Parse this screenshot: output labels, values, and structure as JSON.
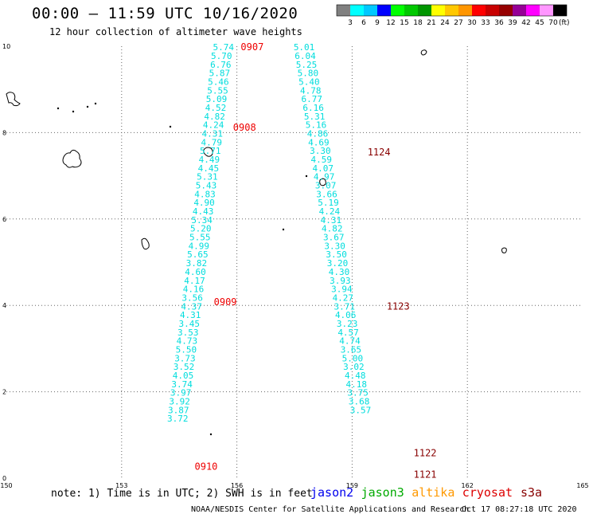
{
  "header": {
    "title": "00:00 — 11:59 UTC 10/16/2020",
    "subtitle": "12 hour collection of altimeter wave heights"
  },
  "footer": {
    "note": "note: 1) Time is in UTC; 2) SWH is in feet",
    "credit": "NOAA/NESDIS Center for Satellite Applications and Research",
    "timestamp": "Oct 17 08:27:18 UTC 2020",
    "satellites": [
      {
        "name": "jason2",
        "color": "#0000ee"
      },
      {
        "name": "jason3",
        "color": "#00aa00"
      },
      {
        "name": "altika",
        "color": "#ff9900"
      },
      {
        "name": "cryosat",
        "color": "#dd0000"
      },
      {
        "name": "s3a",
        "color": "#880000"
      }
    ]
  },
  "colors": {
    "track_values": "#00dddd",
    "track_time_a": "#ee0000",
    "track_time_b": "#880000",
    "grid": "#666666",
    "axis": "#000000"
  },
  "chart_data": {
    "type": "scatter",
    "xlim": [
      150,
      165
    ],
    "ylim": [
      0,
      10
    ],
    "xticks": [
      "150",
      "153",
      "156",
      "159",
      "162",
      "165"
    ],
    "yticks": [
      "0",
      "2",
      "4",
      "6",
      "8",
      "10"
    ],
    "grid": true,
    "legend": {
      "bins": [
        "3",
        "6",
        "9",
        "12",
        "15",
        "18",
        "21",
        "24",
        "27",
        "30",
        "33",
        "36",
        "39",
        "42",
        "45",
        "70"
      ],
      "unit": "(ft)",
      "colors": [
        "#808080",
        "#00ffff",
        "#00c8ff",
        "#0000ff",
        "#00ff00",
        "#00c800",
        "#009600",
        "#ffff00",
        "#ffc800",
        "#ff9600",
        "#ff0000",
        "#c80000",
        "#960000",
        "#960096",
        "#ff00ff",
        "#ff96ff",
        "#000000"
      ]
    },
    "tracks": [
      {
        "times": [
          {
            "label": "0907",
            "x": 156.1,
            "y": 9.98
          },
          {
            "label": "0908",
            "x": 155.9,
            "y": 8.12
          },
          {
            "label": "0909",
            "x": 155.4,
            "y": 4.08
          },
          {
            "label": "0910",
            "x": 154.9,
            "y": 0.27
          }
        ],
        "points": [
          {
            "x": 155.65,
            "y": 9.98,
            "v": "5.74"
          },
          {
            "x": 155.6,
            "y": 9.78,
            "v": "5.70"
          },
          {
            "x": 155.58,
            "y": 9.58,
            "v": "6.76"
          },
          {
            "x": 155.55,
            "y": 9.38,
            "v": "5.87"
          },
          {
            "x": 155.52,
            "y": 9.18,
            "v": "5.46"
          },
          {
            "x": 155.5,
            "y": 8.98,
            "v": "5.55"
          },
          {
            "x": 155.47,
            "y": 8.78,
            "v": "5.09"
          },
          {
            "x": 155.45,
            "y": 8.58,
            "v": "4.52"
          },
          {
            "x": 155.42,
            "y": 8.38,
            "v": "4.82"
          },
          {
            "x": 155.39,
            "y": 8.18,
            "v": "4.24"
          },
          {
            "x": 155.36,
            "y": 7.98,
            "v": "4.31"
          },
          {
            "x": 155.34,
            "y": 7.78,
            "v": "4.79"
          },
          {
            "x": 155.31,
            "y": 7.58,
            "v": "5.71"
          },
          {
            "x": 155.28,
            "y": 7.38,
            "v": "4.49"
          },
          {
            "x": 155.26,
            "y": 7.18,
            "v": "4.45"
          },
          {
            "x": 155.23,
            "y": 6.98,
            "v": "5.31"
          },
          {
            "x": 155.2,
            "y": 6.78,
            "v": "5.43"
          },
          {
            "x": 155.17,
            "y": 6.58,
            "v": "4.83"
          },
          {
            "x": 155.15,
            "y": 6.38,
            "v": "4.90"
          },
          {
            "x": 155.12,
            "y": 6.18,
            "v": "4.43"
          },
          {
            "x": 155.09,
            "y": 5.98,
            "v": "5.34"
          },
          {
            "x": 155.06,
            "y": 5.78,
            "v": "5.20"
          },
          {
            "x": 155.04,
            "y": 5.58,
            "v": "5.55"
          },
          {
            "x": 155.01,
            "y": 5.38,
            "v": "4.99"
          },
          {
            "x": 154.98,
            "y": 5.18,
            "v": "5.65"
          },
          {
            "x": 154.95,
            "y": 4.98,
            "v": "3.82"
          },
          {
            "x": 154.92,
            "y": 4.78,
            "v": "4.60"
          },
          {
            "x": 154.9,
            "y": 4.58,
            "v": "4.17"
          },
          {
            "x": 154.87,
            "y": 4.38,
            "v": "4.16"
          },
          {
            "x": 154.84,
            "y": 4.18,
            "v": "3.56"
          },
          {
            "x": 154.82,
            "y": 3.98,
            "v": "4.37"
          },
          {
            "x": 154.79,
            "y": 3.78,
            "v": "4.31"
          },
          {
            "x": 154.76,
            "y": 3.58,
            "v": "3.45"
          },
          {
            "x": 154.73,
            "y": 3.38,
            "v": "3.53"
          },
          {
            "x": 154.7,
            "y": 3.18,
            "v": "4.73"
          },
          {
            "x": 154.68,
            "y": 2.98,
            "v": "5.50"
          },
          {
            "x": 154.65,
            "y": 2.78,
            "v": "3.73"
          },
          {
            "x": 154.62,
            "y": 2.58,
            "v": "3.52"
          },
          {
            "x": 154.6,
            "y": 2.38,
            "v": "4.05"
          },
          {
            "x": 154.57,
            "y": 2.18,
            "v": "3.74"
          },
          {
            "x": 154.54,
            "y": 1.98,
            "v": "3.97"
          },
          {
            "x": 154.51,
            "y": 1.78,
            "v": "3.92"
          },
          {
            "x": 154.48,
            "y": 1.58,
            "v": "3.87"
          },
          {
            "x": 154.46,
            "y": 1.38,
            "v": "3.72"
          }
        ]
      },
      {
        "times": [
          {
            "label": "1124",
            "x": 159.4,
            "y": 7.55
          },
          {
            "label": "1123",
            "x": 159.9,
            "y": 3.98
          },
          {
            "label": "1122",
            "x": 160.6,
            "y": 0.58
          },
          {
            "label": "1121",
            "x": 160.6,
            "y": 0.08
          }
        ],
        "points": [
          {
            "x": 157.75,
            "y": 9.98,
            "v": "5.01"
          },
          {
            "x": 157.78,
            "y": 9.78,
            "v": "6.04"
          },
          {
            "x": 157.81,
            "y": 9.58,
            "v": "5.25"
          },
          {
            "x": 157.85,
            "y": 9.38,
            "v": "5.80"
          },
          {
            "x": 157.88,
            "y": 9.18,
            "v": "5.40"
          },
          {
            "x": 157.92,
            "y": 8.98,
            "v": "4.78"
          },
          {
            "x": 157.95,
            "y": 8.78,
            "v": "6.77"
          },
          {
            "x": 157.99,
            "y": 8.58,
            "v": "6.16"
          },
          {
            "x": 158.02,
            "y": 8.38,
            "v": "5.31"
          },
          {
            "x": 158.06,
            "y": 8.18,
            "v": "5.16"
          },
          {
            "x": 158.1,
            "y": 7.98,
            "v": "4.86"
          },
          {
            "x": 158.13,
            "y": 7.78,
            "v": "4.69"
          },
          {
            "x": 158.17,
            "y": 7.58,
            "v": "3.30"
          },
          {
            "x": 158.2,
            "y": 7.38,
            "v": "4.59"
          },
          {
            "x": 158.24,
            "y": 7.18,
            "v": "4.07"
          },
          {
            "x": 158.27,
            "y": 6.98,
            "v": "4.97"
          },
          {
            "x": 158.31,
            "y": 6.78,
            "v": "3.07"
          },
          {
            "x": 158.34,
            "y": 6.58,
            "v": "3.66"
          },
          {
            "x": 158.38,
            "y": 6.38,
            "v": "5.19"
          },
          {
            "x": 158.41,
            "y": 6.18,
            "v": "4.24"
          },
          {
            "x": 158.45,
            "y": 5.98,
            "v": "4.31"
          },
          {
            "x": 158.48,
            "y": 5.78,
            "v": "4.82"
          },
          {
            "x": 158.52,
            "y": 5.58,
            "v": "3.67"
          },
          {
            "x": 158.55,
            "y": 5.38,
            "v": "3.30"
          },
          {
            "x": 158.59,
            "y": 5.18,
            "v": "3.50"
          },
          {
            "x": 158.62,
            "y": 4.98,
            "v": "3.20"
          },
          {
            "x": 158.66,
            "y": 4.78,
            "v": "4.30"
          },
          {
            "x": 158.69,
            "y": 4.58,
            "v": "3.93"
          },
          {
            "x": 158.73,
            "y": 4.38,
            "v": "3.94"
          },
          {
            "x": 158.76,
            "y": 4.18,
            "v": "4.27"
          },
          {
            "x": 158.8,
            "y": 3.98,
            "v": "3.71"
          },
          {
            "x": 158.83,
            "y": 3.78,
            "v": "4.06"
          },
          {
            "x": 158.87,
            "y": 3.58,
            "v": "3.23"
          },
          {
            "x": 158.9,
            "y": 3.38,
            "v": "4.57"
          },
          {
            "x": 158.94,
            "y": 3.18,
            "v": "4.74"
          },
          {
            "x": 158.97,
            "y": 2.98,
            "v": "3.65"
          },
          {
            "x": 159.01,
            "y": 2.78,
            "v": "5.00"
          },
          {
            "x": 159.04,
            "y": 2.58,
            "v": "3.02"
          },
          {
            "x": 159.08,
            "y": 2.38,
            "v": "4.48"
          },
          {
            "x": 159.11,
            "y": 2.18,
            "v": "4.18"
          },
          {
            "x": 159.15,
            "y": 1.98,
            "v": "3.75"
          },
          {
            "x": 159.18,
            "y": 1.78,
            "v": "3.68"
          },
          {
            "x": 159.22,
            "y": 1.58,
            "v": "3.57"
          }
        ]
      }
    ]
  }
}
